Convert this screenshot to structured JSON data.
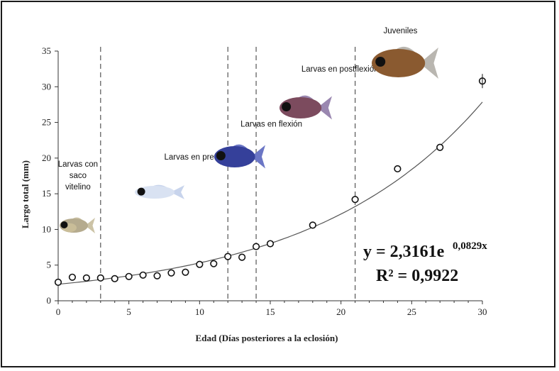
{
  "chart_data": {
    "type": "scatter",
    "title": "",
    "xlabel": "Edad (Días posteriores a la eclosión)",
    "ylabel": "Largo total (mm)",
    "xlim": [
      0,
      30
    ],
    "ylim": [
      0,
      35
    ],
    "xticks": [
      0,
      5,
      10,
      15,
      20,
      25,
      30
    ],
    "yticks": [
      0,
      5,
      10,
      15,
      20,
      25,
      30,
      35
    ],
    "grid": false,
    "series": [
      {
        "name": "Largo total",
        "x": [
          0,
          1,
          2,
          3,
          4,
          5,
          6,
          7,
          8,
          9,
          10,
          11,
          12,
          13,
          14,
          15,
          18,
          21,
          24,
          27,
          30
        ],
        "y": [
          2.6,
          3.3,
          3.2,
          3.2,
          3.1,
          3.4,
          3.6,
          3.5,
          3.9,
          4.0,
          5.1,
          5.2,
          6.2,
          6.1,
          7.6,
          8.0,
          10.6,
          14.2,
          18.5,
          21.5,
          30.8
        ]
      }
    ],
    "fit": {
      "type": "exponential",
      "a": 2.3161,
      "b": 0.0829,
      "equation_label": "y = 2,3161e",
      "equation_exponent": "0,0829x",
      "r2_label": "R² = 0,9922"
    },
    "stage_boundaries_x": [
      3,
      12,
      14,
      21
    ],
    "stages": [
      {
        "label_lines": [
          "Larvas con",
          "saco",
          "vitelino"
        ],
        "x": 1.4,
        "y": 18.8,
        "fish": "yolk-sac-larva"
      },
      {
        "label_lines": [
          "Larvas en preflexión"
        ],
        "x": 7.5,
        "y": 19.8,
        "fish": "preflexion-larva"
      },
      {
        "label_lines": [
          "Larvas en flexión"
        ],
        "x": 12.9,
        "y": 24.4,
        "fish": "flexion-larva"
      },
      {
        "label_lines": [
          "Larvas en postflexión"
        ],
        "x": 17.2,
        "y": 32.1,
        "fish": "postflexion-larva"
      },
      {
        "label_lines": [
          "Juveniles"
        ],
        "x": 23.0,
        "y": 37.5,
        "fish": "juvenile-fish"
      }
    ]
  }
}
